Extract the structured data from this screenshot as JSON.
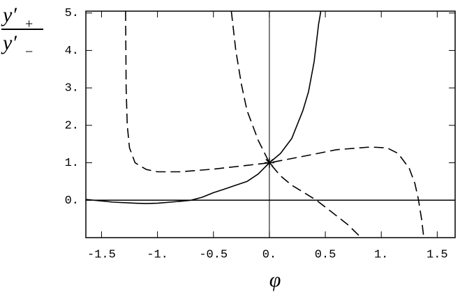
{
  "chart_data": {
    "type": "line",
    "xlabel": "φ",
    "ylabel": {
      "numerator": {
        "base": "y′",
        "sub": "+"
      },
      "denominator": {
        "base": "y′",
        "sub": "−"
      }
    },
    "xlim": [
      -1.64,
      1.66
    ],
    "ylim": [
      -1.0,
      5.05
    ],
    "xticks": [
      -1.5,
      {
        "value": -1,
        "label": "-1."
      },
      -0.5,
      {
        "value": 0,
        "label": "0."
      },
      0.5,
      {
        "value": 1,
        "label": "1."
      },
      1.5
    ],
    "yticks": [
      {
        "value": 0,
        "label": "0."
      },
      {
        "value": 1,
        "label": "1."
      },
      {
        "value": 2,
        "label": "2."
      },
      {
        "value": 3,
        "label": "3."
      },
      {
        "value": 4,
        "label": "4."
      },
      {
        "value": 5,
        "label": "5."
      }
    ],
    "axes_lines": true,
    "series": [
      {
        "color": "#000000",
        "style": "solid",
        "x": [
          -1.64,
          -1.4,
          -1.2,
          -1.1,
          -1.0,
          -0.8,
          -0.7,
          -0.6,
          -0.5,
          -0.4,
          -0.3,
          -0.2,
          -0.1,
          0,
          0.1,
          0.2,
          0.3,
          0.35,
          0.4,
          0.44,
          0.46
        ],
        "values": [
          0.02,
          -0.05,
          -0.08,
          -0.09,
          -0.08,
          -0.03,
          0.0,
          0.08,
          0.2,
          0.3,
          0.4,
          0.5,
          0.7,
          1.0,
          1.25,
          1.65,
          2.4,
          2.9,
          3.7,
          4.7,
          5.05
        ]
      },
      {
        "color": "#000000",
        "style": "dashed",
        "x": [
          -1.285,
          -1.28,
          -1.27,
          -1.25,
          -1.2,
          -1.1,
          -1.0,
          -0.8,
          -0.5,
          -0.2,
          0,
          0.3,
          0.6,
          0.9,
          1.05,
          1.15,
          1.25,
          1.3,
          1.33,
          1.36,
          1.38
        ],
        "values": [
          5.05,
          3.0,
          2.0,
          1.4,
          1.0,
          0.82,
          0.76,
          0.76,
          0.83,
          0.93,
          1.0,
          1.17,
          1.35,
          1.42,
          1.4,
          1.25,
          0.85,
          0.45,
          0.05,
          -0.5,
          -1.0
        ]
      },
      {
        "color": "#000000",
        "style": "dashed",
        "x": [
          -0.34,
          -0.3,
          -0.25,
          -0.2,
          -0.1,
          0,
          0.1,
          0.2,
          0.3,
          0.42,
          0.55,
          0.7,
          0.82
        ],
        "values": [
          5.05,
          4.0,
          3.1,
          2.4,
          1.6,
          1.0,
          0.65,
          0.4,
          0.22,
          0.0,
          -0.3,
          -0.65,
          -1.0
        ]
      },
      {
        "color": "#000000",
        "style": "star",
        "x": [
          0
        ],
        "values": [
          1
        ]
      }
    ]
  }
}
